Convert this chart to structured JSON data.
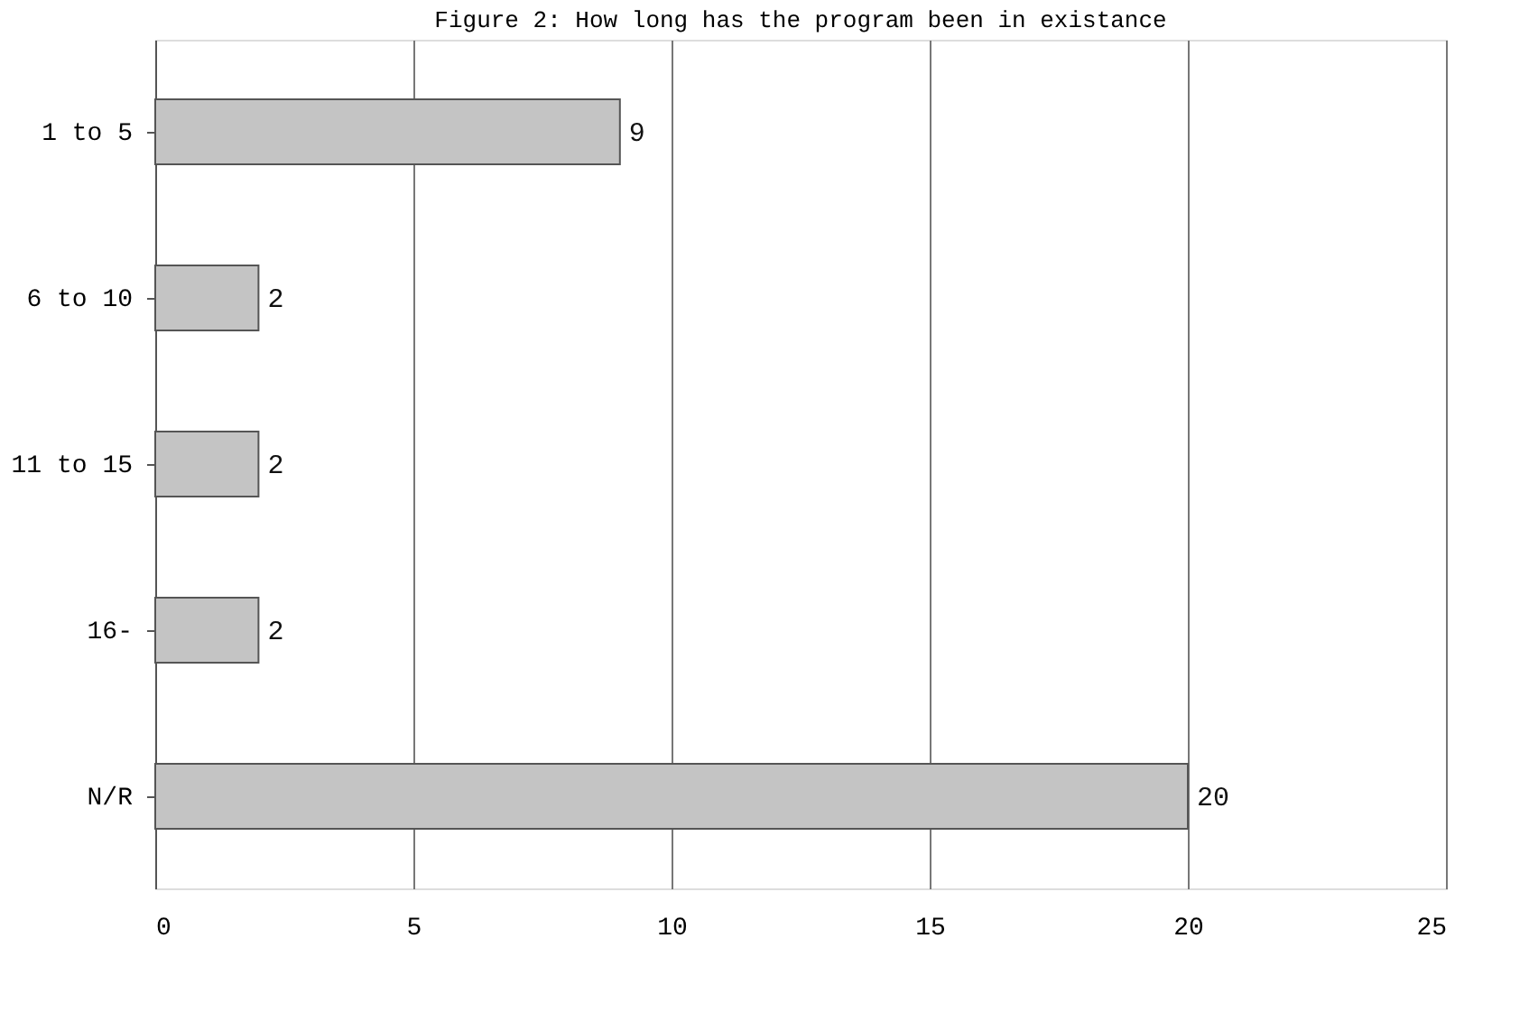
{
  "chart_data": {
    "type": "bar",
    "orientation": "horizontal",
    "title": "Figure 2: How long has the program been in existance",
    "categories": [
      "1 to 5",
      "6 to 10",
      "11 to 15",
      "16-",
      "N/R"
    ],
    "values": [
      9,
      2,
      2,
      2,
      20
    ],
    "color": "#c4c4c4",
    "xlim": [
      0,
      25
    ],
    "xticks": [
      0,
      5,
      10,
      15,
      20,
      25
    ],
    "grid": "x",
    "data_labels": true
  }
}
